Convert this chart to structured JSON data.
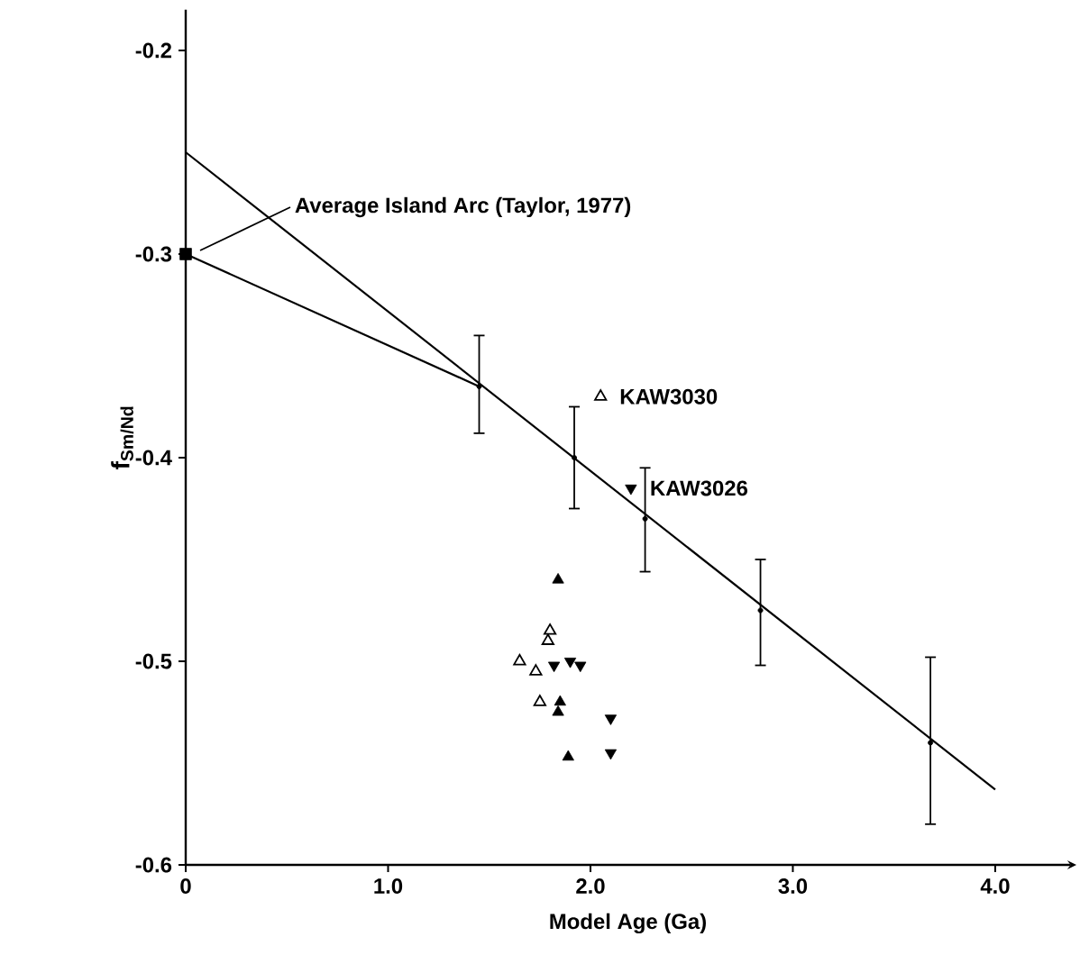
{
  "chart_data": {
    "type": "scatter",
    "xlabel": "Model Age (Ga)",
    "ylabel": "f$_{Sm/Nd}$",
    "xlim": [
      0,
      4.37
    ],
    "ylim": [
      -0.6,
      -0.18
    ],
    "xticks": [
      {
        "value": 0,
        "label": "0"
      },
      {
        "value": 1,
        "label": "1.0"
      },
      {
        "value": 2,
        "label": "2.0"
      },
      {
        "value": 3,
        "label": "3.0"
      },
      {
        "value": 4,
        "label": "4.0"
      }
    ],
    "yticks": [
      -0.6,
      -0.5,
      -0.4,
      -0.3,
      -0.2
    ],
    "series": [
      {
        "type": "line",
        "color": "#000000",
        "marker": "none",
        "x": [
          0,
          4.0
        ],
        "values": [
          -0.25,
          -0.563
        ]
      },
      {
        "type": "line",
        "color": "#000000",
        "marker": "none",
        "x": [
          0,
          1.45
        ],
        "values": [
          -0.3,
          -0.365
        ]
      },
      {
        "color": "#000000",
        "marker": "circle",
        "x": [
          1.45,
          1.92,
          2.27,
          2.84,
          3.68
        ],
        "values": [
          -0.365,
          -0.4,
          -0.43,
          -0.475,
          -0.54
        ],
        "errors": [
          [
            -0.388,
            -0.34
          ],
          [
            -0.425,
            -0.375
          ],
          [
            -0.456,
            -0.405
          ],
          [
            -0.502,
            -0.45
          ],
          [
            -0.58,
            -0.498
          ]
        ]
      },
      {
        "color": "#000000",
        "marker": "square",
        "x": [
          0
        ],
        "values": [
          -0.3
        ]
      },
      {
        "color": "#000000",
        "marker": "triangle-open",
        "x": [
          2.05,
          1.65,
          1.8,
          1.79,
          1.73,
          1.75
        ],
        "values": [
          -0.37,
          -0.5,
          -0.485,
          -0.49,
          -0.505,
          -0.52
        ]
      },
      {
        "color": "#000000",
        "marker": "triangle",
        "x": [
          1.84,
          1.85,
          1.84,
          1.89
        ],
        "values": [
          -0.46,
          -0.52,
          -0.525,
          -0.547
        ]
      },
      {
        "color": "#000000",
        "marker": "triangle-down",
        "x": [
          2.2,
          1.9,
          1.95,
          1.82,
          2.1,
          2.1
        ],
        "values": [
          -0.415,
          -0.5,
          -0.502,
          -0.502,
          -0.528,
          -0.545
        ]
      }
    ],
    "annotations": [
      {
        "text": "Average Island Arc (Taylor, 1977)",
        "x": 0,
        "y": -0.3
      },
      {
        "text": "KAW3030",
        "x": 2.05,
        "y": -0.37
      },
      {
        "text": "KAW3026",
        "x": 2.2,
        "y": -0.415
      }
    ]
  }
}
